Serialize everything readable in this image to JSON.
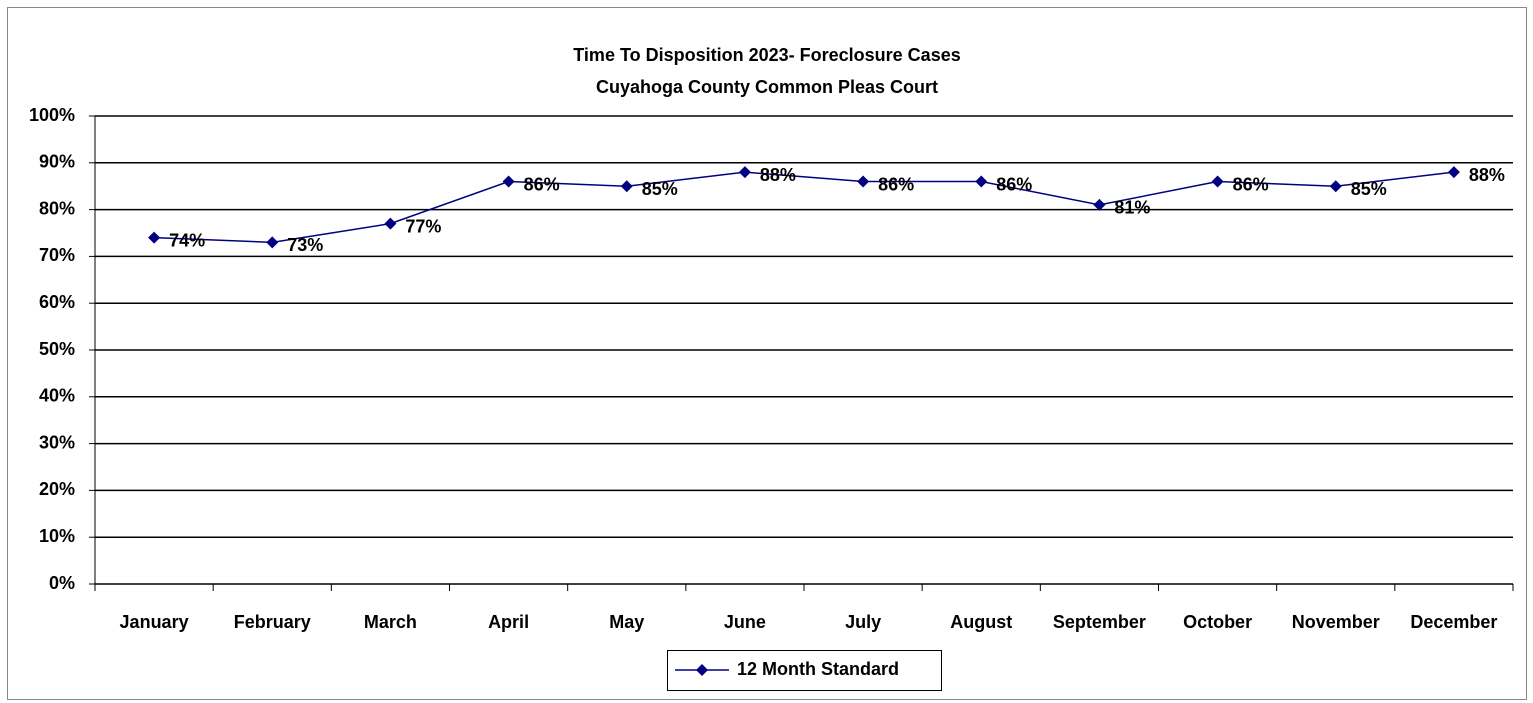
{
  "chart_data": {
    "type": "line",
    "title": "Time To Disposition 2023- Foreclosure Cases",
    "subtitle": "Cuyahoga County Common Pleas Court",
    "categories": [
      "January",
      "February",
      "March",
      "April",
      "May",
      "June",
      "July",
      "August",
      "September",
      "October",
      "November",
      "December"
    ],
    "series": [
      {
        "name": "12 Month Standard",
        "color": "#000080",
        "values": [
          74,
          73,
          77,
          86,
          85,
          88,
          86,
          86,
          81,
          86,
          85,
          88
        ],
        "value_labels": [
          "74%",
          "73%",
          "77%",
          "86%",
          "85%",
          "88%",
          "86%",
          "86%",
          "81%",
          "86%",
          "85%",
          "88%"
        ]
      }
    ],
    "ylim": [
      0,
      100
    ],
    "yticks": [
      {
        "value": 0,
        "label": "0%"
      },
      {
        "value": 10,
        "label": "10%"
      },
      {
        "value": 20,
        "label": "20%"
      },
      {
        "value": 30,
        "label": "30%"
      },
      {
        "value": 40,
        "label": "40%"
      },
      {
        "value": 50,
        "label": "50%"
      },
      {
        "value": 60,
        "label": "60%"
      },
      {
        "value": 70,
        "label": "70%"
      },
      {
        "value": 80,
        "label": "80%"
      },
      {
        "value": 90,
        "label": "90%"
      },
      {
        "value": 100,
        "label": "100%"
      }
    ],
    "grid": true,
    "legend": "bottom"
  }
}
